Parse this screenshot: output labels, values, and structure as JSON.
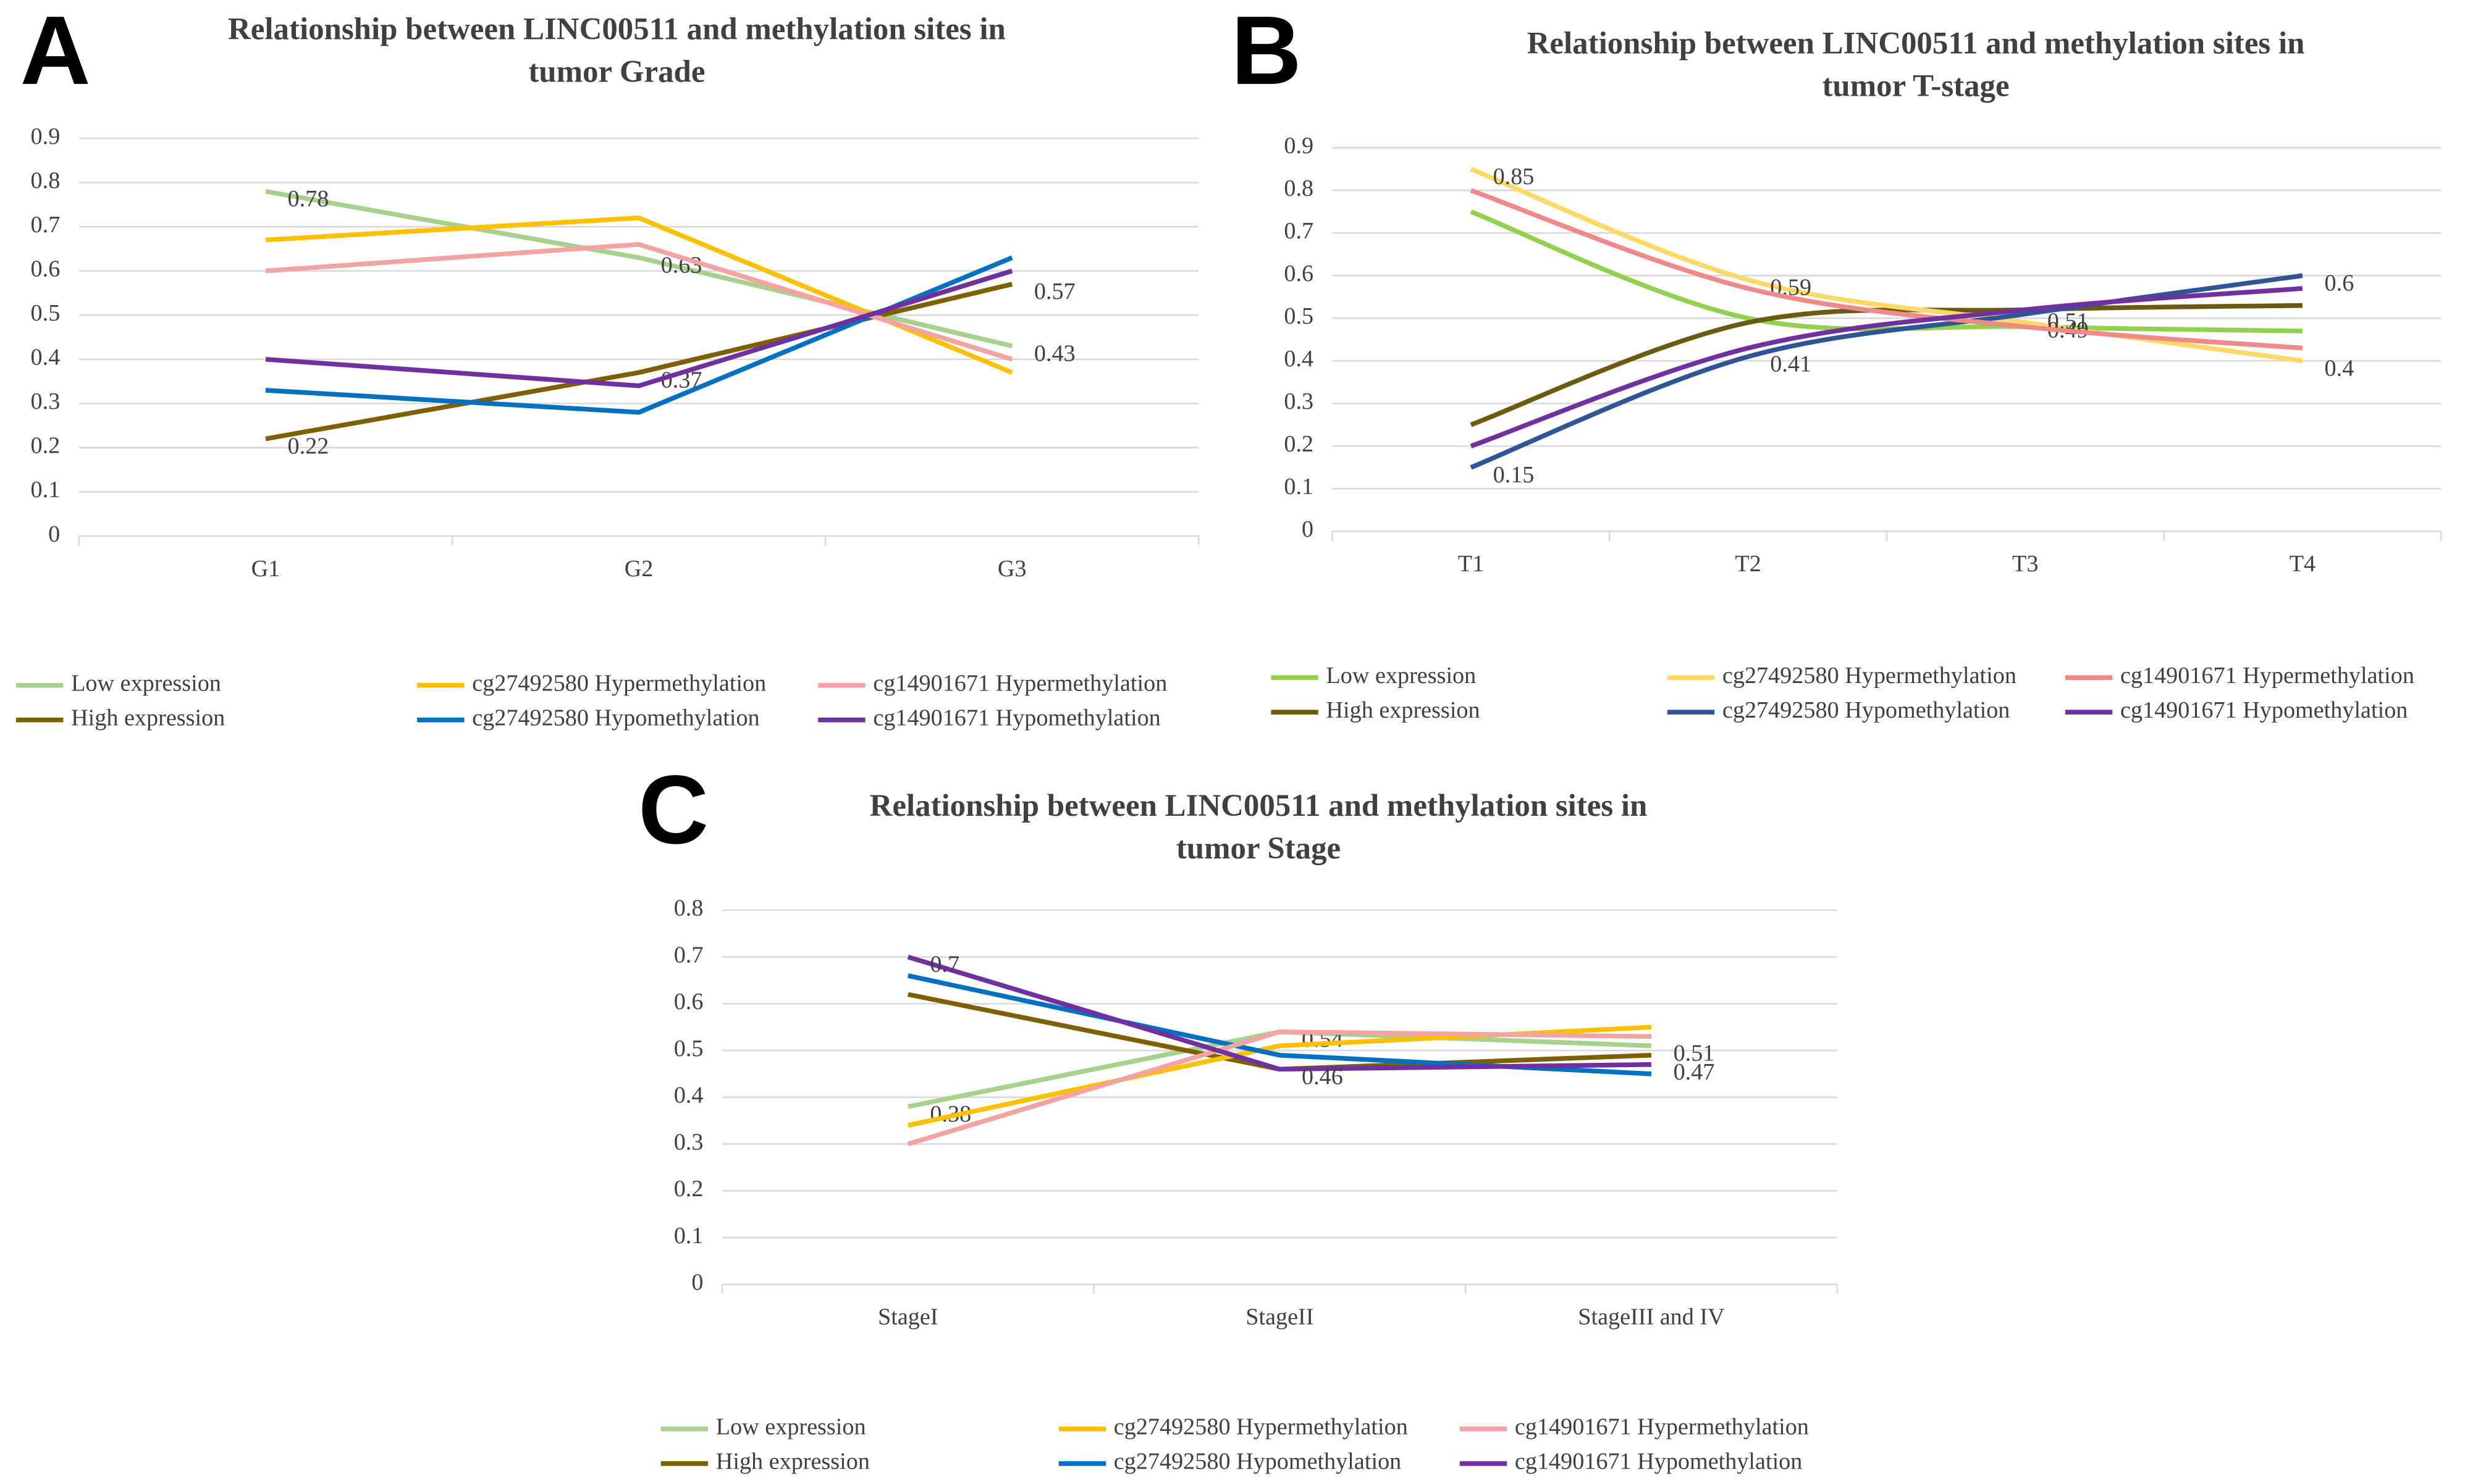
{
  "chart_data": [
    {
      "type": "line",
      "panel": "A",
      "title": "Relationship between LINC00511 and methylation sites in\ntumor Grade",
      "categories": [
        "G1",
        "G2",
        "G3"
      ],
      "ylim": [
        0,
        0.9
      ],
      "yticks": [
        0,
        0.1,
        0.2,
        0.3,
        0.4,
        0.5,
        0.6,
        0.7,
        0.8,
        0.9
      ],
      "grid": true,
      "smooth": false,
      "legend": "bottom",
      "series": [
        {
          "name": "Low expression",
          "color": "#a9d18e",
          "values": [
            0.78,
            0.63,
            0.43
          ],
          "value_labels": [
            "0.78",
            "0.63",
            "0.43"
          ]
        },
        {
          "name": "High expression",
          "color": "#7f6000",
          "values": [
            0.22,
            0.37,
            0.57
          ],
          "value_labels": [
            "0.22",
            "0.37",
            "0.57"
          ]
        },
        {
          "name": "cg27492580 Hypermethylation",
          "color": "#ffc000",
          "values": [
            0.67,
            0.72,
            0.37
          ]
        },
        {
          "name": "cg27492580 Hypomethylation",
          "color": "#0070c0",
          "values": [
            0.33,
            0.28,
            0.63
          ]
        },
        {
          "name": "cg14901671 Hypermethylation",
          "color": "#f4a3a3",
          "values": [
            0.6,
            0.66,
            0.4
          ]
        },
        {
          "name": "cg14901671 Hypomethylation",
          "color": "#7030a0",
          "values": [
            0.4,
            0.34,
            0.6
          ]
        }
      ]
    },
    {
      "type": "line",
      "panel": "B",
      "title": "Relationship between LINC00511 and methylation sites in\ntumor T-stage",
      "categories": [
        "T1",
        "T2",
        "T3",
        "T4"
      ],
      "ylim": [
        0,
        0.9
      ],
      "yticks": [
        0,
        0.1,
        0.2,
        0.3,
        0.4,
        0.5,
        0.6,
        0.7,
        0.8,
        0.9
      ],
      "grid": true,
      "smooth": true,
      "legend": "bottom",
      "series": [
        {
          "name": "Low expression",
          "color": "#92d050",
          "values": [
            0.75,
            0.5,
            0.48,
            0.47
          ]
        },
        {
          "name": "High expression",
          "color": "#6b5a12",
          "values": [
            0.25,
            0.49,
            0.52,
            0.53
          ]
        },
        {
          "name": "cg27492580 Hypermethylation",
          "color": "#ffd966",
          "values": [
            0.85,
            0.59,
            0.49,
            0.4
          ],
          "value_labels": [
            "0.85",
            "0.59",
            "0.49",
            "0.4"
          ]
        },
        {
          "name": "cg27492580 Hypomethylation",
          "color": "#2f5597",
          "values": [
            0.15,
            0.41,
            0.51,
            0.6
          ],
          "value_labels": [
            "0.15",
            "0.41",
            "0.51",
            "0.6"
          ]
        },
        {
          "name": "cg14901671 Hypermethylation",
          "color": "#f08a8a",
          "values": [
            0.8,
            0.57,
            0.48,
            0.43
          ]
        },
        {
          "name": "cg14901671 Hypomethylation",
          "color": "#7030a0",
          "values": [
            0.2,
            0.43,
            0.52,
            0.57
          ]
        }
      ]
    },
    {
      "type": "line",
      "panel": "C",
      "title": "Relationship between LINC00511 and methylation sites in\ntumor Stage",
      "categories": [
        "StageI",
        "StageII",
        "StageIII and IV"
      ],
      "ylim": [
        0,
        0.8
      ],
      "yticks": [
        0,
        0.1,
        0.2,
        0.3,
        0.4,
        0.5,
        0.6,
        0.7,
        0.8
      ],
      "grid": true,
      "smooth": false,
      "legend": "bottom",
      "series": [
        {
          "name": "Low expression",
          "color": "#a9d18e",
          "values": [
            0.38,
            0.54,
            0.51
          ],
          "value_labels": [
            "0.38",
            "0.54",
            "0.51"
          ]
        },
        {
          "name": "High expression",
          "color": "#7f6000",
          "values": [
            0.62,
            0.46,
            0.49
          ]
        },
        {
          "name": "cg27492580 Hypermethylation",
          "color": "#ffc000",
          "values": [
            0.34,
            0.51,
            0.55
          ]
        },
        {
          "name": "cg27492580 Hypomethylation",
          "color": "#0070c0",
          "values": [
            0.66,
            0.49,
            0.45
          ]
        },
        {
          "name": "cg14901671 Hypermethylation",
          "color": "#f4a3a3",
          "values": [
            0.3,
            0.54,
            0.53
          ]
        },
        {
          "name": "cg14901671 Hypomethylation",
          "color": "#7030a0",
          "values": [
            0.7,
            0.46,
            0.47
          ],
          "value_labels": [
            "0.7",
            "0.46",
            "0.47"
          ]
        }
      ]
    }
  ]
}
